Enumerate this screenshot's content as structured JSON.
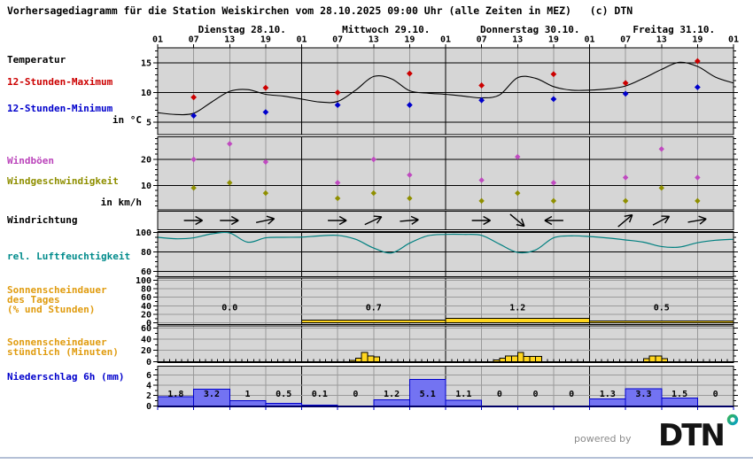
{
  "title": "Vorhersagediagramm für die Station Weiskirchen vom 28.10.2025 09:00 Uhr (alle Zeiten in MEZ)   (c) DTN",
  "header": {
    "days": [
      "Dienstag 28.10.",
      "Mittwoch 29.10.",
      "Donnerstag 30.10.",
      "Freitag 31.10."
    ],
    "time_labels": [
      "01",
      "07",
      "13",
      "19",
      "01",
      "07",
      "13",
      "19",
      "01",
      "07",
      "13",
      "19",
      "01",
      "07",
      "13",
      "19",
      "01"
    ]
  },
  "left_labels": {
    "temperature": "Temperatur",
    "max12": "12-Stunden-Maximum",
    "min12": "12-Stunden-Minimum",
    "temp_unit": "in °C",
    "gusts": "Windböen",
    "wind_speed": "Windgeschwindigkeit",
    "wind_unit": "in km/h",
    "wind_dir": "Windrichtung",
    "humidity": "rel. Luftfeuchtigkeit",
    "sun_day_1": "Sonnenscheindauer",
    "sun_day_2": "des Tages",
    "sun_day_3": "(% und Stunden)",
    "sun_hr_1": "Sonnenscheindauer",
    "sun_hr_2": "stündlich (Minuten)",
    "precip": "Niederschlag 6h (mm)"
  },
  "footer": {
    "powered_by": "powered by",
    "logo": "DTN"
  },
  "colors": {
    "plot_bg": "#d6d6d6",
    "max_red": "#cc0000",
    "min_blue": "#0000cc",
    "gust_magenta": "#c04ac0",
    "speed_olive": "#8f8f00",
    "humidity_teal": "#008080",
    "sun_yellow": "#ffd61e",
    "precip_fill": "#7373f2",
    "precip_blue": "#0000cc",
    "label_red": "#cc0000",
    "label_blue": "#0000cc",
    "label_magenta": "#bb44bb",
    "label_olive": "#8f8f00",
    "label_teal": "#008b8b",
    "label_orange": "#e09c10",
    "powered_gray": "#8a8a8a",
    "divider": "#b4c0d6"
  },
  "chart_data": [
    {
      "type": "line",
      "name": "temperature",
      "title": "Temperatur",
      "unit": "°C",
      "yticks": [
        15,
        10,
        5
      ],
      "ylim": [
        3,
        17.5
      ],
      "x_hours": [
        0,
        3,
        6,
        9,
        12,
        15,
        18,
        21,
        24,
        27,
        30,
        33,
        36,
        39,
        42,
        45,
        48,
        51,
        54,
        57,
        60,
        63,
        66,
        69,
        72,
        75,
        78,
        81,
        84,
        87,
        90,
        93,
        96
      ],
      "values": [
        6.6,
        6.3,
        6.5,
        8.4,
        10.2,
        10.5,
        9.7,
        9.4,
        8.9,
        8.4,
        8.5,
        10.4,
        12.7,
        12.3,
        10.3,
        9.9,
        9.7,
        9.4,
        9.1,
        9.6,
        12.5,
        12.4,
        11.0,
        10.4,
        10.4,
        10.6,
        11.1,
        12.4,
        13.9,
        15.1,
        14.4,
        12.6,
        11.6
      ],
      "max_12h": {
        "hours": [
          6,
          18,
          30,
          42,
          54,
          66,
          78,
          90
        ],
        "values": [
          9.2,
          10.8,
          10,
          13.2,
          11.2,
          13.1,
          11.6,
          15.3
        ]
      },
      "min_12h": {
        "hours": [
          6,
          18,
          30,
          42,
          54,
          66,
          78,
          90
        ],
        "values": [
          6.1,
          6.7,
          7.9,
          7.9,
          8.7,
          8.9,
          9.8,
          10.9
        ]
      }
    },
    {
      "type": "scatter",
      "name": "wind",
      "title": "Windböen / Windgeschwindigkeit",
      "unit": "km/h",
      "yticks": [
        20,
        10
      ],
      "ylim": [
        0,
        29
      ],
      "hours": [
        6,
        12,
        18,
        30,
        36,
        42,
        54,
        60,
        66,
        78,
        84,
        90
      ],
      "gusts": [
        20,
        26,
        19,
        11,
        20,
        14,
        12,
        21,
        11,
        13,
        24,
        13
      ],
      "speed": [
        9,
        11,
        7,
        5,
        7,
        5,
        4,
        7,
        4,
        4,
        9,
        4
      ]
    },
    {
      "type": "vector",
      "name": "wind_direction",
      "title": "Windrichtung",
      "hours": [
        6,
        12,
        18,
        30,
        36,
        42,
        54,
        60,
        66,
        78,
        84,
        90
      ],
      "angles_deg": [
        0,
        0,
        12,
        0,
        25,
        5,
        0,
        -40,
        180,
        40,
        28,
        10
      ]
    },
    {
      "type": "line",
      "name": "humidity",
      "title": "rel. Luftfeuchtigkeit",
      "unit": "%",
      "yticks": [
        100,
        80,
        60
      ],
      "ylim": [
        54,
        101
      ],
      "x_hours": [
        0,
        3,
        6,
        9,
        12,
        15,
        18,
        21,
        24,
        27,
        30,
        33,
        36,
        39,
        42,
        45,
        48,
        51,
        54,
        57,
        60,
        63,
        66,
        69,
        72,
        75,
        78,
        81,
        84,
        87,
        90,
        93,
        96
      ],
      "values": [
        95,
        93.5,
        94.5,
        98.5,
        99.5,
        90,
        94.5,
        95,
        95.2,
        96.5,
        97,
        93,
        84,
        79,
        89,
        96.5,
        98,
        98,
        97,
        88,
        79.5,
        82,
        94.5,
        96.5,
        95.8,
        94.3,
        92.3,
        90,
        85.5,
        85,
        89.5,
        92,
        93
      ]
    },
    {
      "type": "bar",
      "name": "sunshine_day",
      "title": "Sonnenscheindauer des Tages",
      "unit": "% und Stunden",
      "yticks": [
        100,
        80,
        60,
        40,
        20,
        0
      ],
      "ylim": [
        0,
        100
      ],
      "day_percent": [
        0,
        7,
        11,
        5
      ],
      "day_hour_labels": [
        "0.0",
        "0.7",
        "1.2",
        "0.5"
      ]
    },
    {
      "type": "bar",
      "name": "sunshine_hourly",
      "title": "Sonnenscheindauer stündlich",
      "unit": "Minuten",
      "yticks": [
        60,
        40,
        20,
        0
      ],
      "ylim": [
        0,
        63
      ],
      "hours": [
        32,
        33,
        34,
        35,
        36,
        56,
        57,
        58,
        59,
        60,
        61,
        62,
        63,
        81,
        82,
        83,
        84
      ],
      "minutes": [
        2,
        6,
        16,
        10,
        8,
        3,
        6,
        10,
        10,
        16,
        9,
        9,
        9,
        5,
        10,
        10,
        5
      ]
    },
    {
      "type": "bar",
      "name": "precipitation_6h",
      "title": "Niederschlag 6h",
      "unit": "mm",
      "yticks": [
        6,
        4,
        2,
        0
      ],
      "ylim": [
        0,
        7.7
      ],
      "period_hours": 6,
      "values": [
        1.8,
        3.2,
        1,
        0.5,
        0.1,
        0,
        1.2,
        5.1,
        1.1,
        0,
        0,
        0,
        1.3,
        3.3,
        1.5,
        0
      ],
      "labels": [
        "1.8",
        "3.2",
        "1",
        "0.5",
        "0.1",
        "0",
        "1.2",
        "5.1",
        "1.1",
        "0",
        "0",
        "0",
        "1.3",
        "3.3",
        "1.5",
        "0"
      ]
    }
  ]
}
